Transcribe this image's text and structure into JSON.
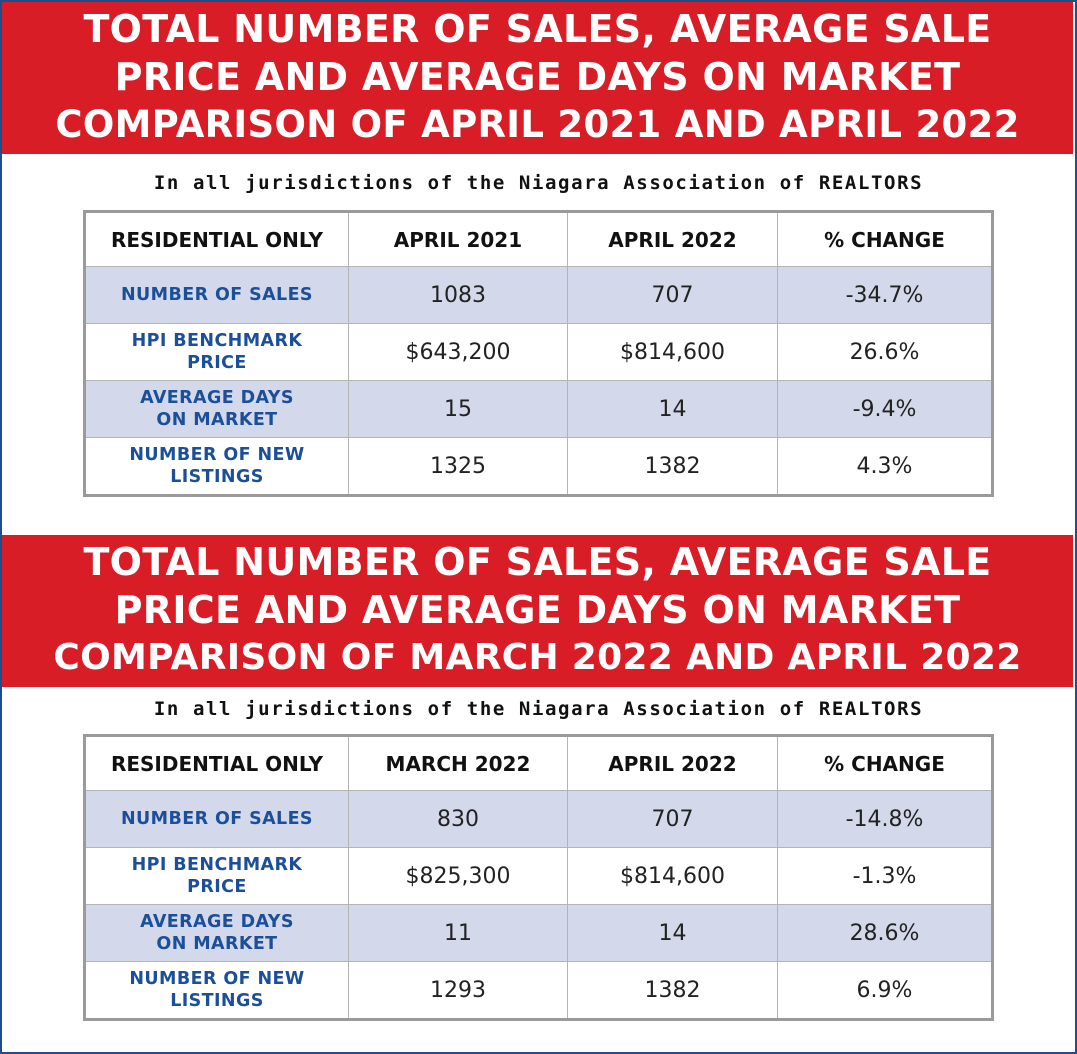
{
  "sections": [
    {
      "banner_lines": [
        "TOTAL NUMBER OF SALES, AVERAGE SALE",
        "PRICE AND AVERAGE DAYS ON MARKET",
        "COMPARISON OF APRIL 2021 AND APRIL 2022"
      ],
      "subtitle": "In all jurisdictions of the Niagara Association of REALTORS",
      "headers": [
        "RESIDENTIAL ONLY",
        "APRIL 2021",
        "APRIL 2022",
        "% CHANGE"
      ],
      "rows": [
        {
          "label_lines": [
            "NUMBER OF SALES"
          ],
          "values": [
            "1083",
            "707",
            "-34.7%"
          ]
        },
        {
          "label_lines": [
            "HPI BENCHMARK",
            "PRICE"
          ],
          "values": [
            "$643,200",
            "$814,600",
            "26.6%"
          ]
        },
        {
          "label_lines": [
            "AVERAGE DAYS",
            "ON MARKET"
          ],
          "values": [
            "15",
            "14",
            "-9.4%"
          ]
        },
        {
          "label_lines": [
            "NUMBER OF NEW",
            "LISTINGS"
          ],
          "values": [
            "1325",
            "1382",
            "4.3%"
          ]
        }
      ]
    },
    {
      "banner_lines": [
        "TOTAL NUMBER OF SALES, AVERAGE SALE",
        "PRICE AND AVERAGE DAYS ON MARKET",
        "COMPARISON OF MARCH 2022 AND APRIL 2022"
      ],
      "subtitle": "In all jurisdictions of the Niagara Association of REALTORS",
      "headers": [
        "RESIDENTIAL ONLY",
        "MARCH 2022",
        "APRIL 2022",
        "% CHANGE"
      ],
      "rows": [
        {
          "label_lines": [
            "NUMBER OF SALES"
          ],
          "values": [
            "830",
            "707",
            "-14.8%"
          ]
        },
        {
          "label_lines": [
            "HPI BENCHMARK",
            "PRICE"
          ],
          "values": [
            "$825,300",
            "$814,600",
            "-1.3%"
          ]
        },
        {
          "label_lines": [
            "AVERAGE DAYS",
            "ON MARKET"
          ],
          "values": [
            "11",
            "14",
            "28.6%"
          ]
        },
        {
          "label_lines": [
            "NUMBER OF NEW",
            "LISTINGS"
          ],
          "values": [
            "1293",
            "1382",
            "6.9%"
          ]
        }
      ]
    }
  ],
  "colors": {
    "banner": "#d81d26",
    "label_text": "#1c4f9a",
    "row_shade": "#d3d8ea",
    "frame": "#1f4e8c"
  }
}
